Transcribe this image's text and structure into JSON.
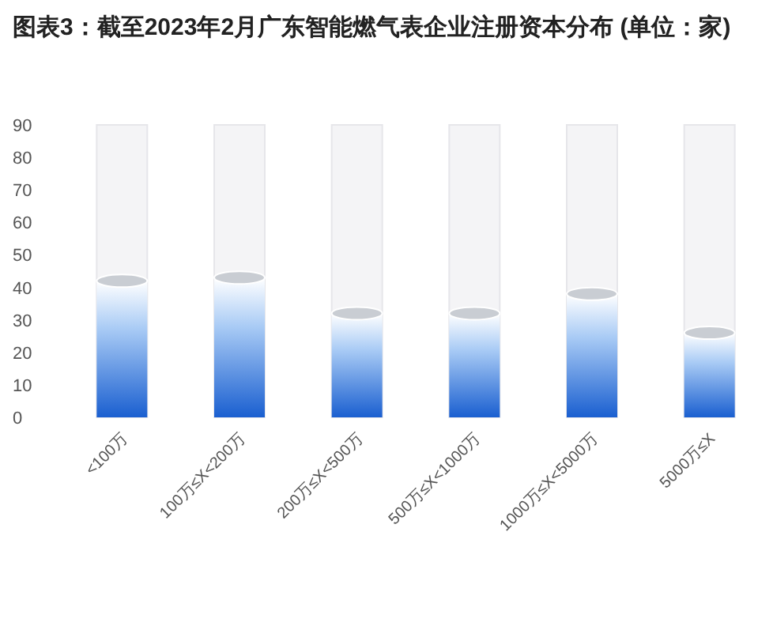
{
  "chart_data": {
    "type": "bar",
    "title": "图表3：截至2023年2月广东智能燃气表企业注册资本分布 (单位：家)",
    "categories": [
      "<100万",
      "100万≤X<200万",
      "200万≤X<500万",
      "500万≤X<1000万",
      "1000万≤X<5000万",
      "5000万≤X"
    ],
    "values": [
      42,
      43,
      32,
      32,
      38,
      26
    ],
    "color": "#1a5fd0",
    "ylim": [
      0,
      90
    ],
    "yticks": [
      0,
      10,
      20,
      30,
      40,
      50,
      60,
      70,
      80,
      90
    ],
    "grid": false
  }
}
